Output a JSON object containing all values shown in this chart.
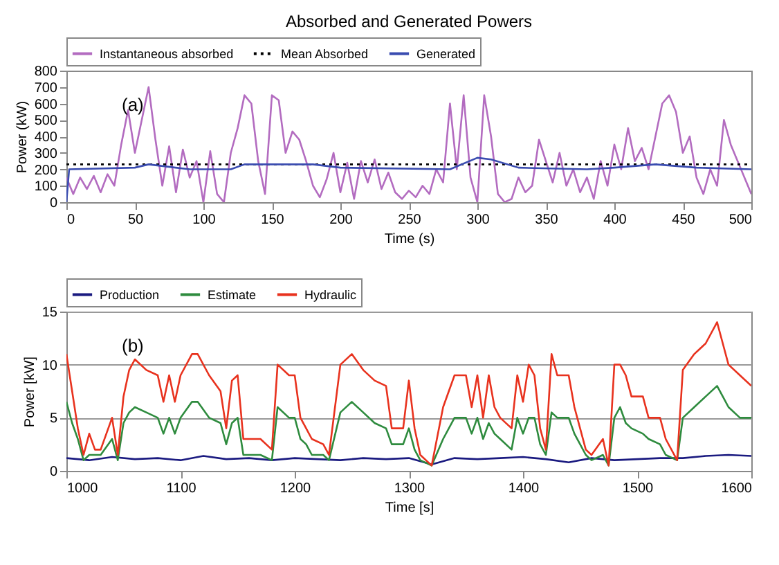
{
  "chart_data": [
    {
      "type": "line",
      "title": "Absorbed and Generated Powers",
      "xlabel": "Time (s)",
      "ylabel": "Power (kW)",
      "annotations": [
        "(a)"
      ],
      "xlim": [
        0,
        500
      ],
      "xticks": [
        0,
        50,
        100,
        150,
        200,
        250,
        300,
        350,
        400,
        450,
        500
      ],
      "ylim": [
        0,
        800
      ],
      "yticks": [
        0,
        100,
        200,
        300,
        400,
        500,
        600,
        700,
        800
      ],
      "grid": false,
      "legend": "top",
      "series": [
        {
          "name": "Instantaneous absorbed",
          "color": "#b36cc0",
          "line_style": "solid",
          "x": [
            0,
            5,
            10,
            15,
            20,
            25,
            30,
            35,
            40,
            45,
            50,
            55,
            60,
            65,
            70,
            75,
            80,
            85,
            90,
            95,
            100,
            105,
            110,
            115,
            120,
            125,
            130,
            135,
            140,
            145,
            150,
            155,
            160,
            165,
            170,
            175,
            180,
            185,
            190,
            195,
            200,
            205,
            210,
            215,
            220,
            225,
            230,
            235,
            240,
            245,
            250,
            255,
            260,
            265,
            270,
            275,
            280,
            285,
            290,
            295,
            300,
            305,
            310,
            315,
            320,
            325,
            330,
            335,
            340,
            345,
            350,
            355,
            360,
            365,
            370,
            375,
            380,
            385,
            390,
            395,
            400,
            405,
            410,
            415,
            420,
            425,
            430,
            435,
            440,
            445,
            450,
            455,
            460,
            465,
            470,
            475,
            480,
            485,
            490,
            495,
            500
          ],
          "values": [
            150,
            50,
            150,
            80,
            160,
            60,
            170,
            100,
            350,
            560,
            300,
            500,
            700,
            380,
            100,
            340,
            60,
            320,
            150,
            250,
            0,
            310,
            50,
            0,
            300,
            450,
            650,
            600,
            250,
            50,
            650,
            620,
            300,
            430,
            380,
            250,
            100,
            30,
            140,
            300,
            60,
            240,
            20,
            250,
            120,
            260,
            80,
            180,
            60,
            20,
            70,
            30,
            100,
            50,
            200,
            120,
            600,
            200,
            650,
            150,
            0,
            650,
            400,
            50,
            0,
            20,
            150,
            60,
            100,
            380,
            250,
            120,
            300,
            100,
            200,
            60,
            150,
            20,
            250,
            100,
            350,
            200,
            450,
            250,
            330,
            200,
            400,
            600,
            650,
            550,
            300,
            400,
            150,
            50,
            200,
            100,
            500,
            350,
            250,
            150,
            50
          ]
        },
        {
          "name": "Mean Absorbed",
          "color": "#000000",
          "line_style": "dotted",
          "x": [
            0,
            500
          ],
          "values": [
            230,
            230
          ]
        },
        {
          "name": "Generated",
          "color": "#3a4cb0",
          "line_style": "solid",
          "x": [
            0,
            2,
            50,
            60,
            90,
            120,
            130,
            180,
            200,
            280,
            300,
            310,
            330,
            380,
            400,
            430,
            460,
            500
          ],
          "values": [
            0,
            200,
            210,
            230,
            200,
            200,
            230,
            230,
            210,
            200,
            270,
            260,
            210,
            200,
            210,
            230,
            210,
            200
          ]
        }
      ]
    },
    {
      "type": "line",
      "xlabel": "Time [s]",
      "ylabel": "Power [kW]",
      "annotations": [
        "(b)"
      ],
      "xlim": [
        1000,
        1600
      ],
      "xticks": [
        1000,
        1100,
        1200,
        1300,
        1400,
        1500,
        1600
      ],
      "ylim": [
        0,
        15
      ],
      "yticks": [
        0,
        5,
        10,
        15
      ],
      "grid": "y",
      "legend": "top",
      "series": [
        {
          "name": "Production",
          "color": "#1a1a80",
          "line_style": "solid",
          "x": [
            1000,
            1020,
            1040,
            1060,
            1080,
            1100,
            1120,
            1140,
            1160,
            1180,
            1200,
            1220,
            1240,
            1260,
            1280,
            1300,
            1320,
            1340,
            1360,
            1380,
            1400,
            1420,
            1440,
            1460,
            1480,
            1500,
            1520,
            1540,
            1560,
            1580,
            1600
          ],
          "values": [
            1.2,
            1.0,
            1.3,
            1.1,
            1.2,
            1.0,
            1.4,
            1.1,
            1.2,
            1.0,
            1.2,
            1.1,
            1.0,
            1.2,
            1.1,
            1.2,
            0.6,
            1.2,
            1.1,
            1.2,
            1.3,
            1.1,
            0.8,
            1.2,
            1.0,
            1.1,
            1.2,
            1.2,
            1.4,
            1.5,
            1.4
          ]
        },
        {
          "name": "Estimate",
          "color": "#2e8b3e",
          "line_style": "solid",
          "x": [
            1000,
            1005,
            1010,
            1015,
            1020,
            1025,
            1030,
            1040,
            1045,
            1050,
            1055,
            1060,
            1070,
            1080,
            1085,
            1090,
            1095,
            1100,
            1110,
            1115,
            1125,
            1135,
            1140,
            1145,
            1150,
            1155,
            1170,
            1180,
            1185,
            1195,
            1200,
            1205,
            1210,
            1215,
            1225,
            1230,
            1240,
            1250,
            1260,
            1270,
            1280,
            1285,
            1295,
            1300,
            1305,
            1310,
            1320,
            1330,
            1340,
            1350,
            1355,
            1360,
            1365,
            1370,
            1375,
            1380,
            1390,
            1395,
            1400,
            1405,
            1410,
            1415,
            1420,
            1425,
            1430,
            1440,
            1445,
            1450,
            1455,
            1460,
            1470,
            1475,
            1480,
            1485,
            1490,
            1495,
            1505,
            1510,
            1520,
            1525,
            1535,
            1540,
            1550,
            1560,
            1570,
            1575,
            1580,
            1590,
            1600
          ],
          "values": [
            6.5,
            4.5,
            3,
            1,
            1.5,
            1.5,
            1.5,
            3,
            1,
            4.5,
            5.5,
            6,
            5.5,
            5,
            3.5,
            5,
            3.5,
            5,
            6.5,
            6.5,
            5,
            4.5,
            2.5,
            4.5,
            5,
            1.5,
            1.5,
            1,
            6,
            5,
            5,
            3,
            2.5,
            1.5,
            1.5,
            1,
            5.5,
            6.5,
            5.5,
            4.5,
            4,
            2.5,
            2.5,
            4,
            2,
            1,
            0.5,
            3,
            5,
            5,
            3.5,
            5,
            3,
            4.5,
            3.5,
            3,
            2,
            5,
            3.5,
            5,
            5,
            2.5,
            1.5,
            5.5,
            5,
            5,
            3.5,
            2.5,
            1.5,
            1,
            1.5,
            0.5,
            5,
            6,
            4.5,
            4,
            3.5,
            3,
            2.5,
            1.5,
            1,
            5,
            6,
            7,
            8,
            7,
            6,
            5,
            5
          ]
        },
        {
          "name": "Hydraulic",
          "color": "#e8321e",
          "line_style": "solid",
          "x": [
            1000,
            1005,
            1010,
            1015,
            1020,
            1025,
            1030,
            1040,
            1045,
            1050,
            1055,
            1060,
            1070,
            1080,
            1085,
            1090,
            1095,
            1100,
            1110,
            1115,
            1125,
            1135,
            1140,
            1145,
            1150,
            1155,
            1170,
            1180,
            1185,
            1195,
            1200,
            1205,
            1210,
            1215,
            1225,
            1230,
            1240,
            1250,
            1260,
            1270,
            1280,
            1285,
            1295,
            1300,
            1305,
            1310,
            1320,
            1330,
            1340,
            1350,
            1355,
            1360,
            1365,
            1370,
            1375,
            1380,
            1390,
            1395,
            1400,
            1405,
            1410,
            1415,
            1420,
            1425,
            1430,
            1440,
            1445,
            1450,
            1455,
            1460,
            1470,
            1475,
            1480,
            1485,
            1490,
            1495,
            1505,
            1510,
            1520,
            1525,
            1535,
            1540,
            1550,
            1560,
            1570,
            1575,
            1580,
            1590,
            1600
          ],
          "values": [
            11,
            7.5,
            4,
            1.5,
            3.5,
            2,
            2,
            5,
            1.5,
            7,
            9.5,
            10.5,
            9.5,
            9,
            6.5,
            9,
            6.5,
            9,
            11,
            11,
            9,
            7.5,
            4,
            8.5,
            9,
            3,
            3,
            2,
            10,
            9,
            9,
            5,
            4,
            3,
            2.5,
            1.5,
            10,
            11,
            9.5,
            8.5,
            8,
            4,
            4,
            8.5,
            4,
            1.5,
            0.5,
            6,
            9,
            9,
            6,
            9,
            5,
            9,
            6,
            5,
            4,
            9,
            6.5,
            10,
            9,
            4,
            2,
            11,
            9,
            9,
            6,
            4,
            2,
            1.5,
            3,
            0.5,
            10,
            10,
            9,
            7,
            7,
            5,
            5,
            3,
            1,
            9.5,
            11,
            12,
            14,
            12,
            10,
            9,
            8
          ]
        }
      ]
    }
  ]
}
